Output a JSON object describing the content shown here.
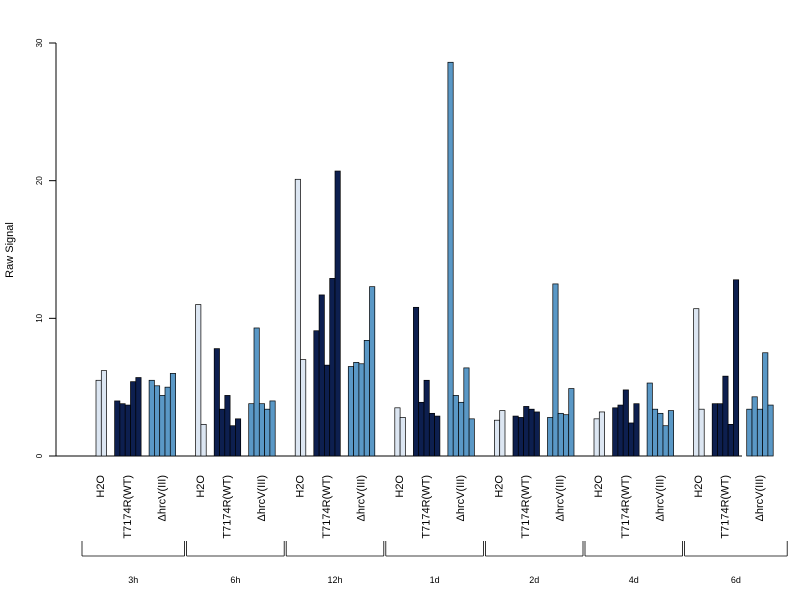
{
  "chart_data": {
    "type": "bar",
    "ylabel": "Raw Signal",
    "ylim": [
      0,
      30
    ],
    "yticks": [
      0,
      10,
      20,
      30
    ],
    "colors": {
      "H2O": "#dce6f2",
      "T7174R(WT)": "#0d1f4f",
      "ΔhrcV(III)": "#5a98c6"
    },
    "groups": [
      {
        "label": "3h",
        "series": [
          {
            "name": "H2O",
            "values": [
              5.5,
              6.2
            ]
          },
          {
            "name": "T7174R(WT)",
            "values": [
              4.0,
              3.8,
              3.7,
              5.4,
              5.7
            ]
          },
          {
            "name": "ΔhrcV(III)",
            "values": [
              5.5,
              5.1,
              4.4,
              5.0,
              6.0
            ]
          }
        ]
      },
      {
        "label": "6h",
        "series": [
          {
            "name": "H2O",
            "values": [
              11.0,
              2.3
            ]
          },
          {
            "name": "T7174R(WT)",
            "values": [
              7.8,
              3.4,
              4.4,
              2.2,
              2.7
            ]
          },
          {
            "name": "ΔhrcV(III)",
            "values": [
              3.8,
              9.3,
              3.8,
              3.4,
              4.0
            ]
          }
        ]
      },
      {
        "label": "12h",
        "series": [
          {
            "name": "H2O",
            "values": [
              20.1,
              7.0
            ]
          },
          {
            "name": "T7174R(WT)",
            "values": [
              9.1,
              11.7,
              6.6,
              12.9,
              20.7
            ]
          },
          {
            "name": "ΔhrcV(III)",
            "values": [
              6.5,
              6.8,
              6.7,
              8.4,
              12.3
            ]
          }
        ]
      },
      {
        "label": "1d",
        "series": [
          {
            "name": "H2O",
            "values": [
              3.5,
              2.8
            ]
          },
          {
            "name": "T7174R(WT)",
            "values": [
              10.8,
              3.9,
              5.5,
              3.1,
              2.9
            ]
          },
          {
            "name": "ΔhrcV(III)",
            "values": [
              28.6,
              4.4,
              3.9,
              6.4,
              2.7
            ]
          }
        ]
      },
      {
        "label": "2d",
        "series": [
          {
            "name": "H2O",
            "values": [
              2.6,
              3.3
            ]
          },
          {
            "name": "T7174R(WT)",
            "values": [
              2.9,
              2.8,
              3.6,
              3.4,
              3.2
            ]
          },
          {
            "name": "ΔhrcV(III)",
            "values": [
              2.8,
              12.5,
              3.1,
              3.0,
              4.9
            ]
          }
        ]
      },
      {
        "label": "4d",
        "series": [
          {
            "name": "H2O",
            "values": [
              2.7,
              3.2
            ]
          },
          {
            "name": "T7174R(WT)",
            "values": [
              3.5,
              3.7,
              4.8,
              2.4,
              3.8
            ]
          },
          {
            "name": "ΔhrcV(III)",
            "values": [
              5.3,
              3.4,
              3.1,
              2.2,
              3.3
            ]
          }
        ]
      },
      {
        "label": "6d",
        "series": [
          {
            "name": "H2O",
            "values": [
              10.7,
              3.4
            ]
          },
          {
            "name": "T7174R(WT)",
            "values": [
              3.8,
              3.8,
              5.8,
              2.3,
              12.8
            ]
          },
          {
            "name": "ΔhrcV(III)",
            "values": [
              3.4,
              4.3,
              3.4,
              7.5,
              3.7
            ]
          }
        ]
      }
    ]
  }
}
